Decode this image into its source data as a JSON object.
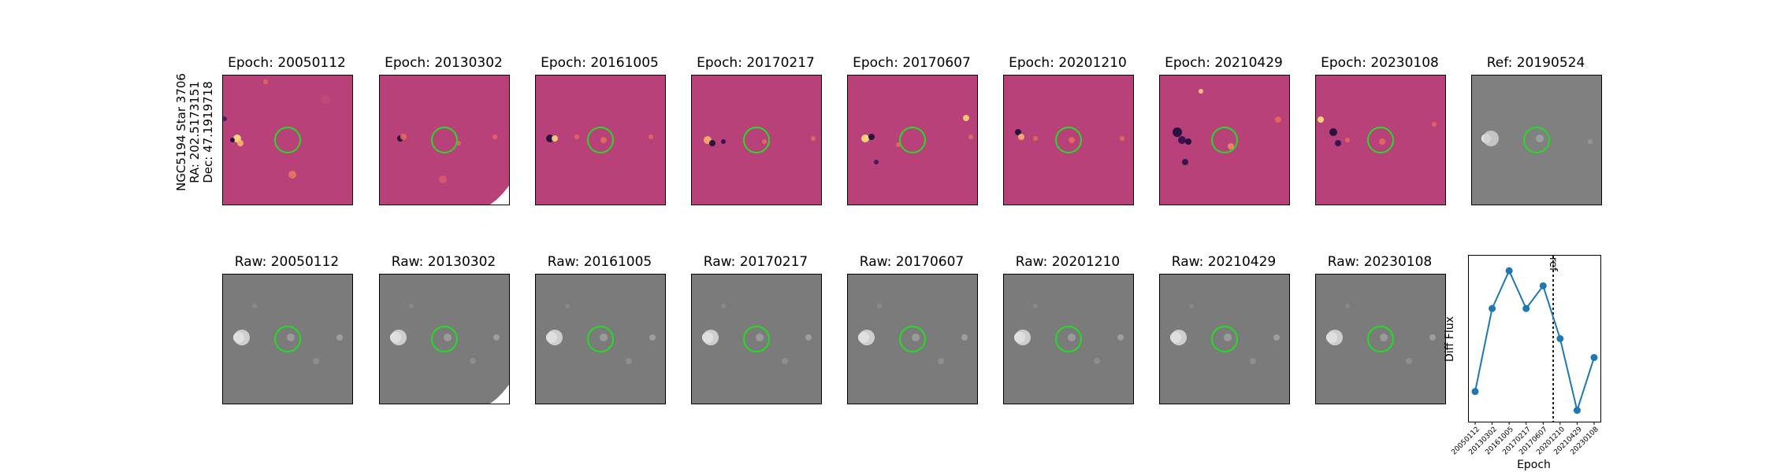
{
  "star_label": {
    "line1": "NGC5194 Star 3706",
    "line2": "RA: 202.5173151",
    "line3": "Dec: 47.1919718"
  },
  "diff_panels": [
    {
      "title": "Epoch: 20050112"
    },
    {
      "title": "Epoch: 20130302"
    },
    {
      "title": "Epoch: 20161005"
    },
    {
      "title": "Epoch: 20170217"
    },
    {
      "title": "Epoch: 20170607"
    },
    {
      "title": "Epoch: 20201210"
    },
    {
      "title": "Epoch: 20210429"
    },
    {
      "title": "Epoch: 20230108"
    }
  ],
  "ref_panel": {
    "title": "Ref: 20190524"
  },
  "raw_panels": [
    {
      "title": "Raw: 20050112"
    },
    {
      "title": "Raw: 20130302"
    },
    {
      "title": "Raw: 20161005"
    },
    {
      "title": "Raw: 20170217"
    },
    {
      "title": "Raw: 20170607"
    },
    {
      "title": "Raw: 20201210"
    },
    {
      "title": "Raw: 20210429"
    },
    {
      "title": "Raw: 20230108"
    }
  ],
  "colors": {
    "diff_background": "#b8417a",
    "raw_background": "#7b7b7b",
    "aperture": "#22dd22",
    "series": "#1f77b4"
  },
  "chart_data": {
    "type": "line",
    "xlabel": "Epoch",
    "ylabel": "Diff Flux",
    "categories": [
      "20050112",
      "20130302",
      "20161005",
      "20170217",
      "20170607",
      "20201210",
      "20210429",
      "20230108"
    ],
    "series": [
      {
        "values": [
          0.2,
          1.3,
          1.8,
          1.3,
          1.6,
          0.9,
          -0.05,
          0.65
        ]
      }
    ],
    "ref_line": {
      "label": "ref",
      "position_between": [
        "20170607",
        "20201210"
      ]
    },
    "ylim": [
      -0.2,
      2.0
    ],
    "grid": false
  }
}
